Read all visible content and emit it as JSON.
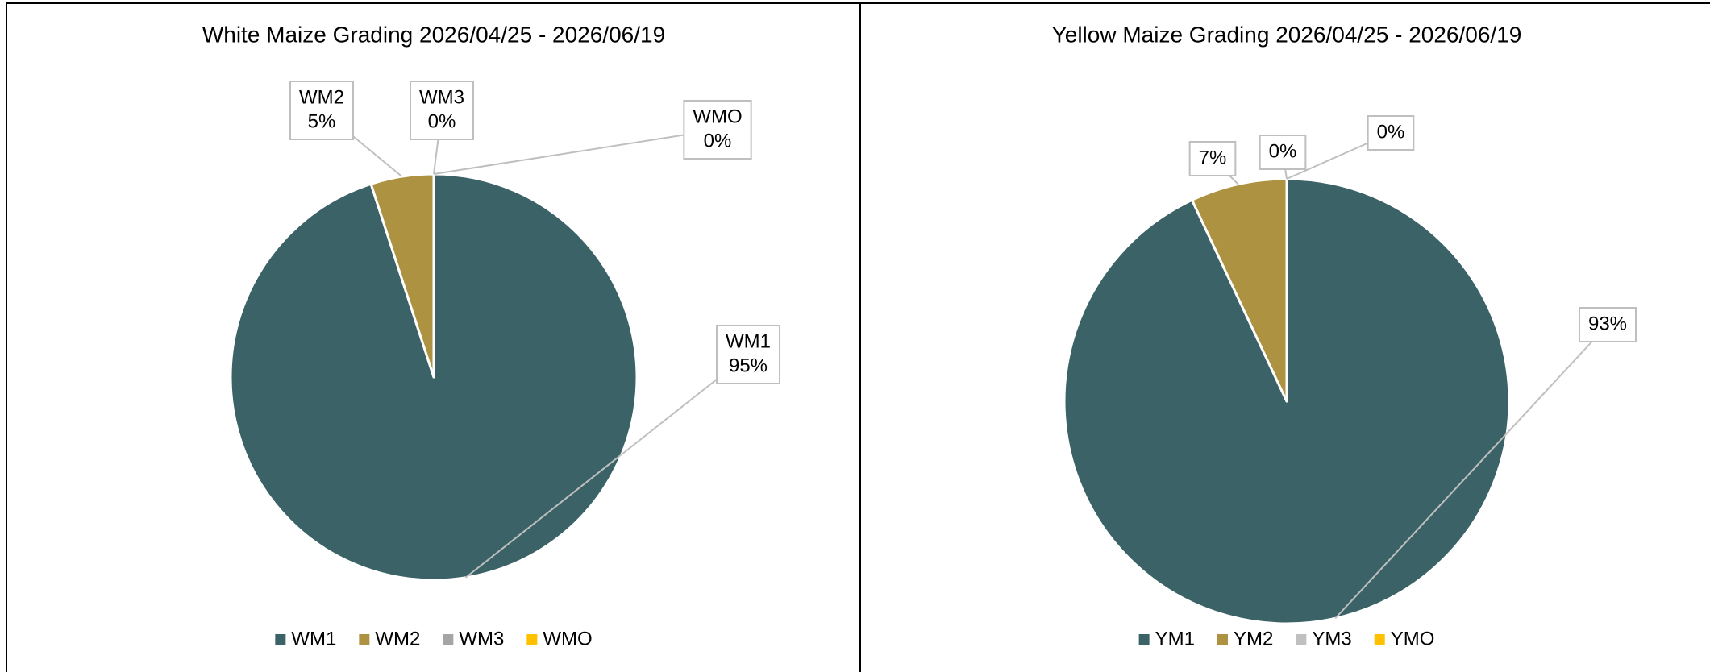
{
  "chart_data": [
    {
      "type": "pie",
      "title": "White Maize Grading 2026/04/25 - 2026/06/19",
      "categories": [
        "WM1",
        "WM2",
        "WM3",
        "WMO"
      ],
      "values": [
        95,
        5,
        0,
        0
      ],
      "value_labels": [
        "95%",
        "5%",
        "0%",
        "0%"
      ],
      "colors": [
        "#3b6266",
        "#ad9242",
        "#a5a5a5",
        "#ffc000"
      ],
      "label_shows_category": true,
      "legend": "bottom"
    },
    {
      "type": "pie",
      "title": "Yellow Maize Grading 2026/04/25 - 2026/06/19",
      "categories": [
        "YM1",
        "YM2",
        "YM3",
        "YMO"
      ],
      "values": [
        93,
        7,
        0,
        0
      ],
      "value_labels": [
        "93%",
        "7%",
        "0%",
        "0%"
      ],
      "colors": [
        "#3b6266",
        "#ad9242",
        "#c0c0c0",
        "#ffc000"
      ],
      "label_shows_category": false,
      "legend": "bottom"
    }
  ]
}
